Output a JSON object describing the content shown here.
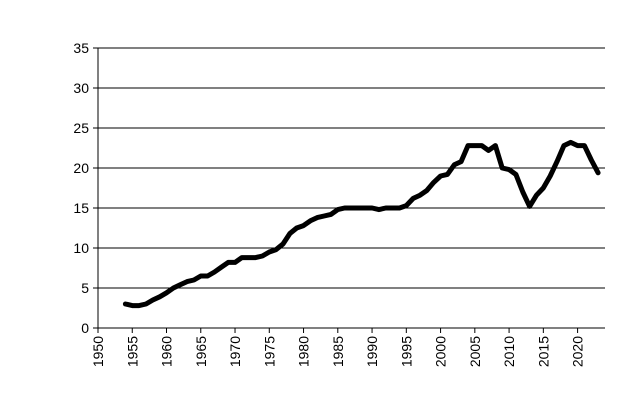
{
  "chart_data": {
    "type": "line",
    "title": "",
    "xlabel": "",
    "ylabel": "",
    "xlim": [
      1950,
      2024
    ],
    "ylim": [
      0,
      35
    ],
    "yticks": [
      0,
      5,
      10,
      15,
      20,
      25,
      30,
      35
    ],
    "xticks": [
      1950,
      1955,
      1960,
      1965,
      1970,
      1975,
      1980,
      1985,
      1990,
      1995,
      2000,
      2005,
      2010,
      2015,
      2020
    ],
    "grid": "horizontal",
    "legend": "none",
    "series_color": "#000000",
    "series": [
      {
        "x": [
          1954,
          1955,
          1956,
          1957,
          1958,
          1959,
          1960,
          1961,
          1962,
          1963,
          1964,
          1965,
          1966,
          1967,
          1968,
          1969,
          1970,
          1971,
          1972,
          1973,
          1974,
          1975,
          1976,
          1977,
          1978,
          1979,
          1980,
          1981,
          1982,
          1983,
          1984,
          1985,
          1986,
          1987,
          1988,
          1989,
          1990,
          1991,
          1992,
          1993,
          1994,
          1995,
          1996,
          1997,
          1998,
          1999,
          2000,
          2001,
          2002,
          2003,
          2004,
          2005,
          2006,
          2007,
          2008,
          2009,
          2010,
          2011,
          2012,
          2013,
          2014,
          2015,
          2016,
          2017,
          2018,
          2019,
          2020,
          2021,
          2022,
          2023
        ],
        "values": [
          3.0,
          2.8,
          2.8,
          3.0,
          3.5,
          3.9,
          4.4,
          5.0,
          5.4,
          5.8,
          6.0,
          6.5,
          6.5,
          7.0,
          7.6,
          8.2,
          8.2,
          8.8,
          8.8,
          8.8,
          9.0,
          9.5,
          9.8,
          10.5,
          11.8,
          12.5,
          12.8,
          13.4,
          13.8,
          14.0,
          14.2,
          14.8,
          15.0,
          15.0,
          15.0,
          15.0,
          15.0,
          14.8,
          15.0,
          15.0,
          15.0,
          15.3,
          16.2,
          16.6,
          17.2,
          18.2,
          19.0,
          19.2,
          20.4,
          20.8,
          22.8,
          22.8,
          22.8,
          22.2,
          22.8,
          20.0,
          19.8,
          19.2,
          17.0,
          15.2,
          16.6,
          17.5,
          19.0,
          20.8,
          22.8,
          23.2,
          22.8,
          22.8,
          21.0,
          19.4
        ]
      }
    ]
  }
}
